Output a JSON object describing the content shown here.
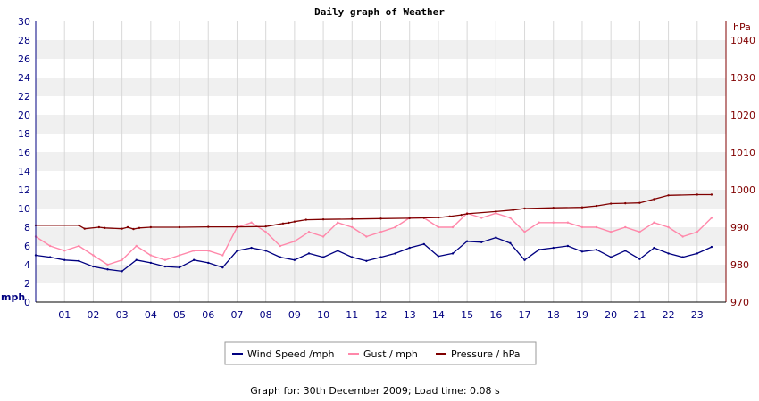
{
  "chart_data": {
    "type": "line",
    "title": "Daily graph of Weather",
    "x_ticks": [
      "01",
      "02",
      "03",
      "04",
      "05",
      "06",
      "07",
      "08",
      "09",
      "10",
      "11",
      "12",
      "13",
      "14",
      "15",
      "16",
      "17",
      "18",
      "19",
      "20",
      "21",
      "22",
      "23"
    ],
    "xlim": [
      0,
      24
    ],
    "y_left": {
      "unit": "mph",
      "ylim": [
        0,
        30
      ],
      "ticks": [
        0,
        2,
        4,
        6,
        8,
        10,
        12,
        14,
        16,
        18,
        20,
        22,
        24,
        26,
        28,
        30
      ]
    },
    "y_right": {
      "unit": "hPa",
      "ylim": [
        970,
        1045
      ],
      "ticks": [
        970,
        980,
        990,
        1000,
        1010,
        1020,
        1030,
        1040
      ]
    },
    "grid": true,
    "legend_position": "bottom-center",
    "series": [
      {
        "name": "Wind Speed /mph",
        "axis": "left",
        "color": "#000080",
        "x": [
          0,
          0.5,
          1,
          1.5,
          2,
          2.5,
          3,
          3.5,
          4,
          4.5,
          5,
          5.5,
          6,
          6.5,
          7,
          7.5,
          8,
          8.5,
          9,
          9.5,
          10,
          10.5,
          11,
          11.5,
          12,
          12.5,
          13,
          13.5,
          14,
          14.5,
          15,
          15.5,
          16,
          16.5,
          17,
          17.5,
          18,
          18.5,
          19,
          19.5,
          20,
          20.5,
          21,
          21.5,
          22,
          22.5,
          23,
          23.5
        ],
        "values": [
          5,
          4.8,
          4.5,
          4.4,
          3.8,
          3.5,
          3.3,
          4.5,
          4.2,
          3.8,
          3.7,
          4.5,
          4.2,
          3.7,
          5.5,
          5.8,
          5.5,
          4.8,
          4.5,
          5.2,
          4.8,
          5.5,
          4.8,
          4.4,
          4.8,
          5.2,
          5.8,
          6.2,
          4.9,
          5.2,
          6.5,
          6.4,
          6.9,
          6.3,
          4.5,
          5.6,
          5.8,
          6.0,
          5.4,
          5.6,
          4.8,
          5.5,
          4.6,
          5.8,
          5.2,
          4.8,
          5.2,
          5.9
        ]
      },
      {
        "name": "Gust / mph",
        "axis": "left",
        "color": "#ff88aa",
        "x": [
          0,
          0.5,
          1,
          1.5,
          2,
          2.5,
          3,
          3.5,
          4,
          4.5,
          5,
          5.5,
          6,
          6.5,
          7,
          7.5,
          8,
          8.5,
          9,
          9.5,
          10,
          10.5,
          11,
          11.5,
          12,
          12.5,
          13,
          13.5,
          14,
          14.5,
          15,
          15.5,
          16,
          16.5,
          17,
          17.5,
          18,
          18.5,
          19,
          19.5,
          20,
          20.5,
          21,
          21.5,
          22,
          22.5,
          23,
          23.5
        ],
        "values": [
          7,
          6,
          5.5,
          6,
          5,
          4,
          4.5,
          6,
          5,
          4.5,
          5,
          5.5,
          5.5,
          5,
          8,
          8.5,
          7.5,
          6,
          6.5,
          7.5,
          7,
          8.5,
          8,
          7,
          7.5,
          8,
          9,
          9,
          8,
          8,
          9.5,
          9,
          9.5,
          9,
          7.5,
          8.5,
          8.5,
          8.5,
          8,
          8,
          7.5,
          8,
          7.5,
          8.5,
          8,
          7,
          7.5,
          9
        ]
      },
      {
        "name": "Pressure / hPa",
        "axis": "right",
        "color": "#800000",
        "x": [
          0,
          1.5,
          1.7,
          2.2,
          2.4,
          3,
          3.2,
          3.4,
          3.6,
          4,
          5,
          6,
          7,
          8,
          8.6,
          8.8,
          9,
          9.4,
          10,
          11,
          12,
          13,
          13.5,
          14,
          14.4,
          14.8,
          15,
          16,
          16.6,
          17,
          18,
          19,
          19.5,
          20,
          20.5,
          21,
          21.5,
          22,
          23,
          23.5
        ],
        "values": [
          990.5,
          990.5,
          989.6,
          990.0,
          989.8,
          989.6,
          990.0,
          989.5,
          989.8,
          990.0,
          990.0,
          990.1,
          990.1,
          990.2,
          991.0,
          991.2,
          991.5,
          992.0,
          992.1,
          992.2,
          992.3,
          992.4,
          992.5,
          992.6,
          992.9,
          993.3,
          993.6,
          994.2,
          994.6,
          995.0,
          995.2,
          995.3,
          995.7,
          996.3,
          996.4,
          996.5,
          997.5,
          998.5,
          998.7,
          998.7
        ]
      }
    ]
  },
  "footer": {
    "label": "Graph for: 30th December 2009; Load time: 0.08 s"
  }
}
